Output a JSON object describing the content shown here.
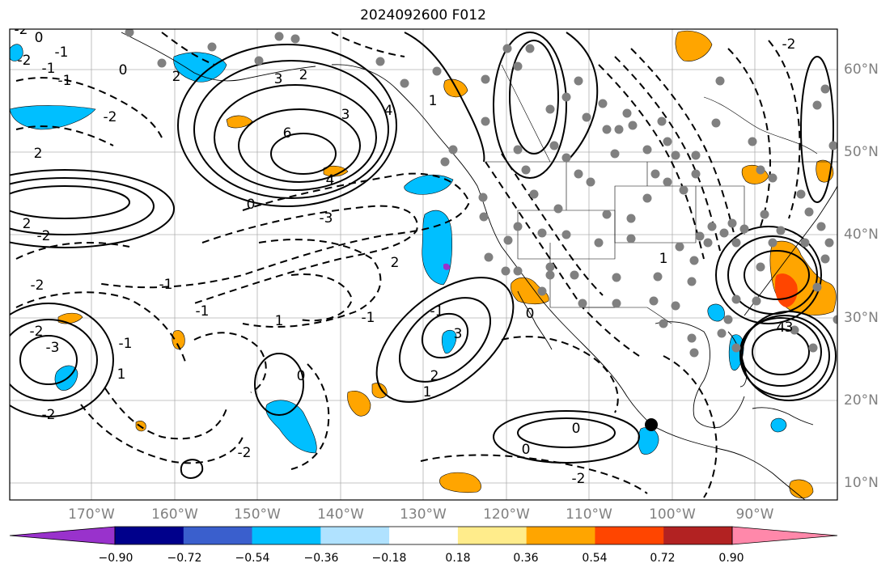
{
  "title": "2024092600 F012",
  "map": {
    "lat_labels": [
      "60°N",
      "50°N",
      "40°N",
      "30°N",
      "20°N",
      "10°N"
    ],
    "lon_labels": [
      "170°W",
      "160°W",
      "150°W",
      "140°W",
      "130°W",
      "120°W",
      "110°W",
      "100°W",
      "90°W"
    ],
    "contour_labels": [
      "-2",
      "0",
      "-1",
      "-2",
      "-1",
      "0",
      "2",
      "-1",
      "3",
      "2",
      "1",
      "-2",
      "4",
      "6",
      "3",
      "2",
      "2",
      "4",
      "0",
      "-3",
      "-2",
      "-2",
      "1",
      "0",
      "2",
      "3",
      "2",
      "1",
      "-1",
      "-2",
      "-1",
      "-3",
      "1",
      "-2",
      "0",
      "-2",
      "3",
      "-1",
      "-1",
      "-2",
      "-1",
      "1",
      "0",
      "0",
      "4",
      "-2"
    ],
    "fill_colors": {
      "blue": "#00bfff",
      "orange": "#ffa500",
      "red": "#ff4500",
      "purple": "#9932cc"
    },
    "markers": "station-dots",
    "special_marker": "black-dot"
  },
  "colorbar": {
    "colors": [
      "#9932cc",
      "#00008b",
      "#3a5fcd",
      "#00bfff",
      "#b0e2ff",
      "#ffffff",
      "#ffec8b",
      "#ffa500",
      "#ff4500",
      "#b22222",
      "#ff88aa"
    ],
    "tick_labels": [
      "−0.90",
      "−0.72",
      "−0.54",
      "−0.36",
      "−0.18",
      "0.18",
      "0.36",
      "0.54",
      "0.72",
      "0.90"
    ]
  }
}
